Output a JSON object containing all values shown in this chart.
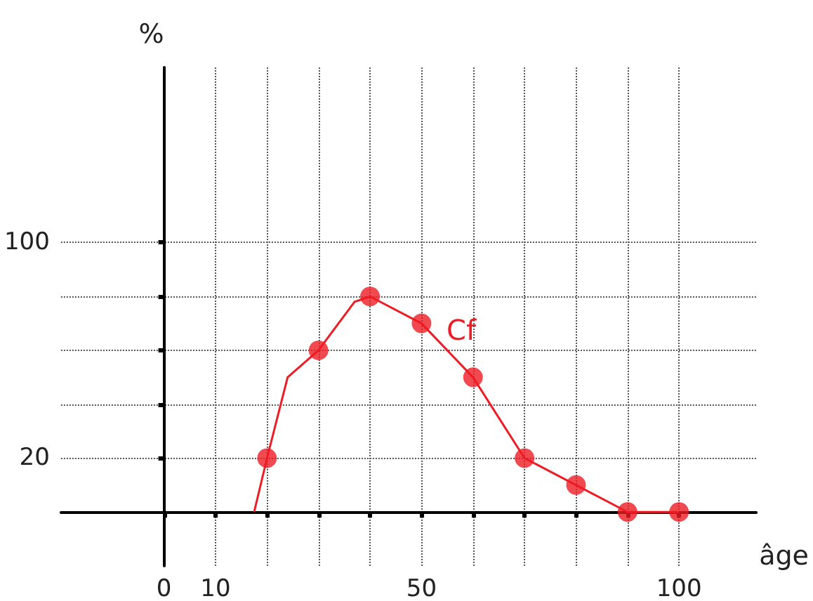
{
  "chart_data": {
    "type": "line",
    "xlabel": "âge",
    "ylabel": "%",
    "series": [
      {
        "color": "#ee1c24",
        "marker": "none",
        "x": [
          17.5,
          20,
          24,
          30,
          37,
          40,
          50,
          60,
          70,
          80,
          90,
          100
        ],
        "values": [
          0,
          20,
          50,
          60,
          78,
          80,
          70,
          50,
          20,
          10,
          0,
          0
        ]
      },
      {
        "type": "scatter",
        "color": "#ee1c24",
        "marker": "circle",
        "x": [
          20,
          30,
          40,
          50,
          60,
          70,
          80,
          90,
          100
        ],
        "values": [
          20,
          60,
          80,
          70,
          50,
          20,
          10,
          0,
          0
        ]
      }
    ],
    "annotations": [
      "Cf"
    ],
    "xlim": [
      -20,
      115
    ],
    "ylim": [
      -20,
      165
    ],
    "xticks": [
      {
        "value": 0,
        "label": "0"
      },
      10,
      {
        "value": 20,
        "label": null
      },
      {
        "value": 30,
        "label": null
      },
      {
        "value": 40,
        "label": null
      },
      50,
      {
        "value": 60,
        "label": null
      },
      {
        "value": 70,
        "label": null
      },
      {
        "value": 80,
        "label": null
      },
      {
        "value": 90,
        "label": null
      },
      100
    ],
    "yticks": [
      20,
      {
        "value": 40,
        "label": null
      },
      {
        "value": 60,
        "label": null
      },
      {
        "value": 80,
        "label": null
      },
      100
    ],
    "grid": true
  }
}
